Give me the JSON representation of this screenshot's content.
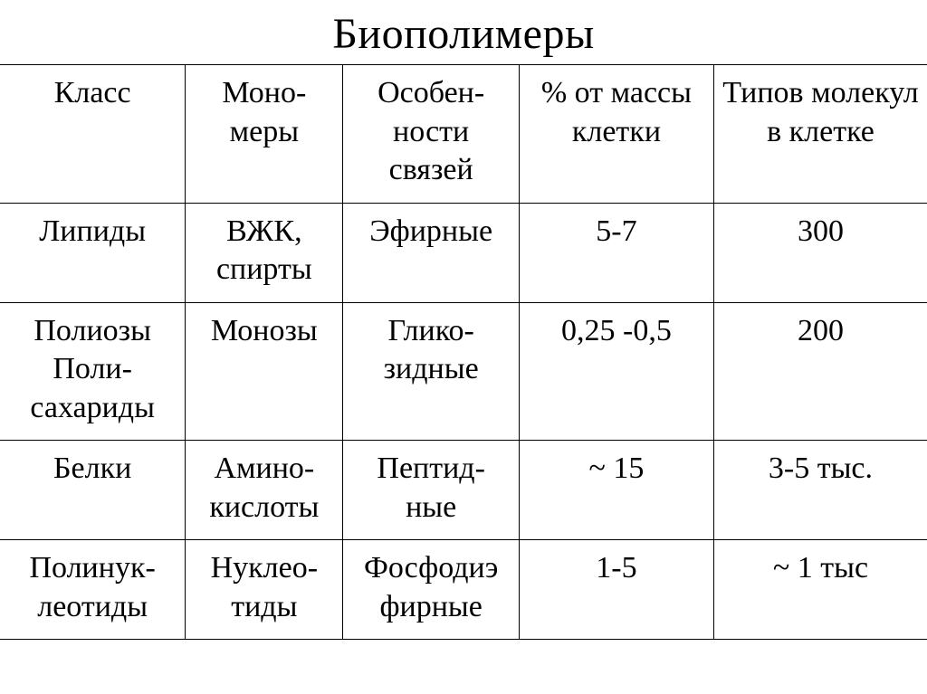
{
  "title": "Биополимеры",
  "table": {
    "border_color": "#000000",
    "background_color": "#ffffff",
    "text_color": "#000000",
    "font_family": "Times New Roman",
    "title_fontsize": 48,
    "cell_fontsize": 34,
    "column_widths_percent": [
      20,
      17,
      19,
      21,
      23
    ],
    "columns": [
      "Класс",
      "Моно-\nмеры",
      "Особен-\nности связей",
      "% от массы клетки",
      "Типов молекул в клетке"
    ],
    "rows": [
      {
        "class": "Липиды",
        "monomers": "ВЖК, спирты",
        "bonds": "Эфирные",
        "percent": "5-7",
        "types": "300"
      },
      {
        "class": "Полиозы\nПоли-\nсахариды",
        "monomers": "Монозы",
        "bonds": "Глико-\nзидные",
        "percent": "0,25 -0,5",
        "types": "200"
      },
      {
        "class": "Белки",
        "monomers": "Амино-\nкислоты",
        "bonds": "Пептид-\nные",
        "percent": "~ 15",
        "types": "3-5 тыс."
      },
      {
        "class": "Полинук-\nлеотиды",
        "monomers": "Нуклео-\nтиды",
        "bonds": "Фосфодиэ\nфирные",
        "percent": "1-5",
        "types": "~ 1 тыс"
      }
    ]
  }
}
